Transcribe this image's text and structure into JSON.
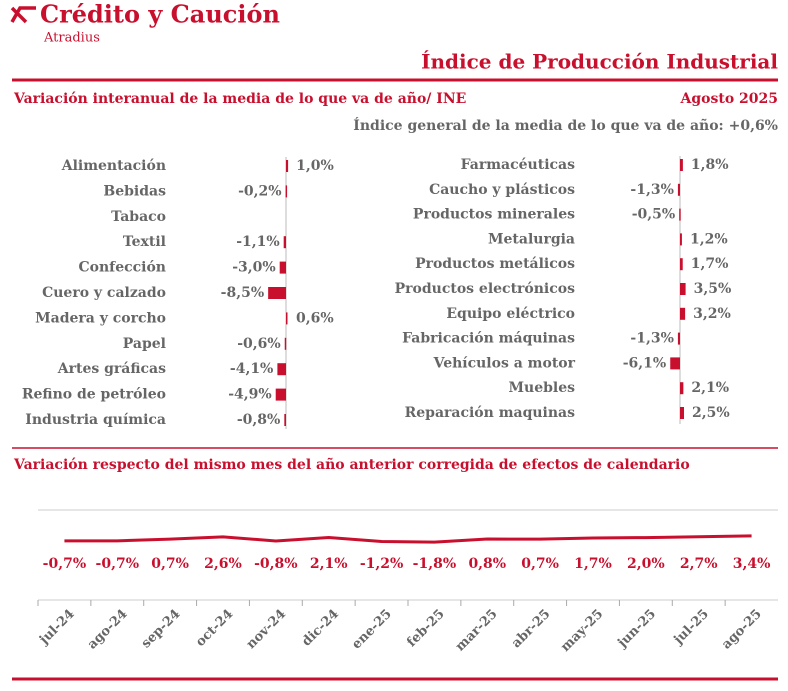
{
  "header": {
    "brand": "Crédito y Caución",
    "brand_sub": "Atradius",
    "title": "Índice de Producción Industrial",
    "subtitle": "Variación interanual de la media de lo que va de año/ INE",
    "period": "Agosto 2025",
    "general_index": "Índice general de la media de lo que va de año:  +0,6%"
  },
  "chart_data": [
    {
      "type": "bar",
      "orientation": "horizontal",
      "color": "#c8102e",
      "xlim": [
        -10,
        10
      ],
      "categories": [
        "Alimentación",
        "Bebidas",
        "Tabaco",
        "Textil",
        "Confección",
        "Cuero y calzado",
        "Madera y corcho",
        "Papel",
        "Artes gráficas",
        "Refino de petróleo",
        "Industria química"
      ],
      "values": [
        1.0,
        -0.2,
        null,
        -1.1,
        -3.0,
        -8.5,
        0.6,
        -0.6,
        -4.1,
        -4.9,
        -0.8
      ],
      "value_labels": [
        "1,0%",
        "-0,2%",
        null,
        "-1,1%",
        "-3,0%",
        "-8,5%",
        "0,6%",
        "-0,6%",
        "-4,1%",
        "-4,9%",
        "-0,8%"
      ]
    },
    {
      "type": "bar",
      "orientation": "horizontal",
      "color": "#c8102e",
      "xlim": [
        -10,
        10
      ],
      "categories": [
        "Farmacéuticas",
        "Caucho y plásticos",
        "Productos minerales",
        "Metalurgia",
        "Productos metálicos",
        "Productos electrónicos",
        "Equipo eléctrico",
        "Fabricación máquinas",
        "Vehículos a motor",
        "Muebles",
        "Reparación maquinas"
      ],
      "values": [
        1.8,
        -1.3,
        -0.5,
        1.2,
        1.7,
        3.5,
        3.2,
        -1.3,
        -6.1,
        2.1,
        2.5
      ],
      "value_labels": [
        "1,8%",
        "-1,3%",
        "-0,5%",
        "1,2%",
        "1,7%",
        "3,5%",
        "3,2%",
        "-1,3%",
        "-6,1%",
        "2,1%",
        "2,5%"
      ]
    },
    {
      "type": "line",
      "title": "Variación respecto del mismo mes del año anterior corregida de efectos de calendario",
      "color": "#c8102e",
      "ylim": [
        -50,
        25
      ],
      "categories": [
        "jul-24",
        "ago-24",
        "sep-24",
        "oct-24",
        "nov-24",
        "dic-24",
        "ene-25",
        "feb-25",
        "mar-25",
        "abr-25",
        "may-25",
        "jun-25",
        "jul-25",
        "ago-25"
      ],
      "values": [
        -0.7,
        -0.7,
        0.7,
        2.6,
        -0.8,
        2.1,
        -1.2,
        -1.8,
        0.8,
        0.7,
        1.7,
        2.0,
        2.7,
        3.4
      ],
      "value_labels": [
        "-0,7%",
        "-0,7%",
        "0,7%",
        "2,6%",
        "-0,8%",
        "2,1%",
        "-1,2%",
        "-1,8%",
        "0,8%",
        "0,7%",
        "1,7%",
        "2,0%",
        "2,7%",
        "3,4%"
      ]
    }
  ]
}
